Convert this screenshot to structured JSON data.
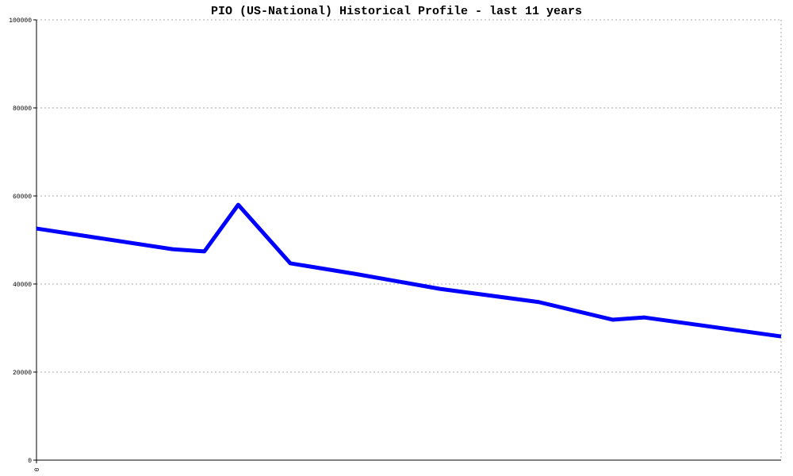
{
  "chart_data": {
    "type": "line",
    "title": "PIO (US-National) Historical Profile - last 11 years",
    "x": [
      0,
      2.01,
      2.48,
      2.98,
      3.75,
      4.71,
      5.96,
      7.42,
      8.51,
      8.98,
      11
    ],
    "series": [
      {
        "color": "#0000ff",
        "values": [
          52600,
          47900,
          47400,
          58000,
          44700,
          42300,
          38900,
          35900,
          31900,
          32400,
          28100
        ]
      }
    ],
    "xlim": [
      0,
      11
    ],
    "xticks": [
      0
    ],
    "ylim": [
      0,
      100000
    ],
    "yticks": [
      0,
      20000,
      40000,
      60000,
      80000,
      100000
    ],
    "grid": true
  }
}
